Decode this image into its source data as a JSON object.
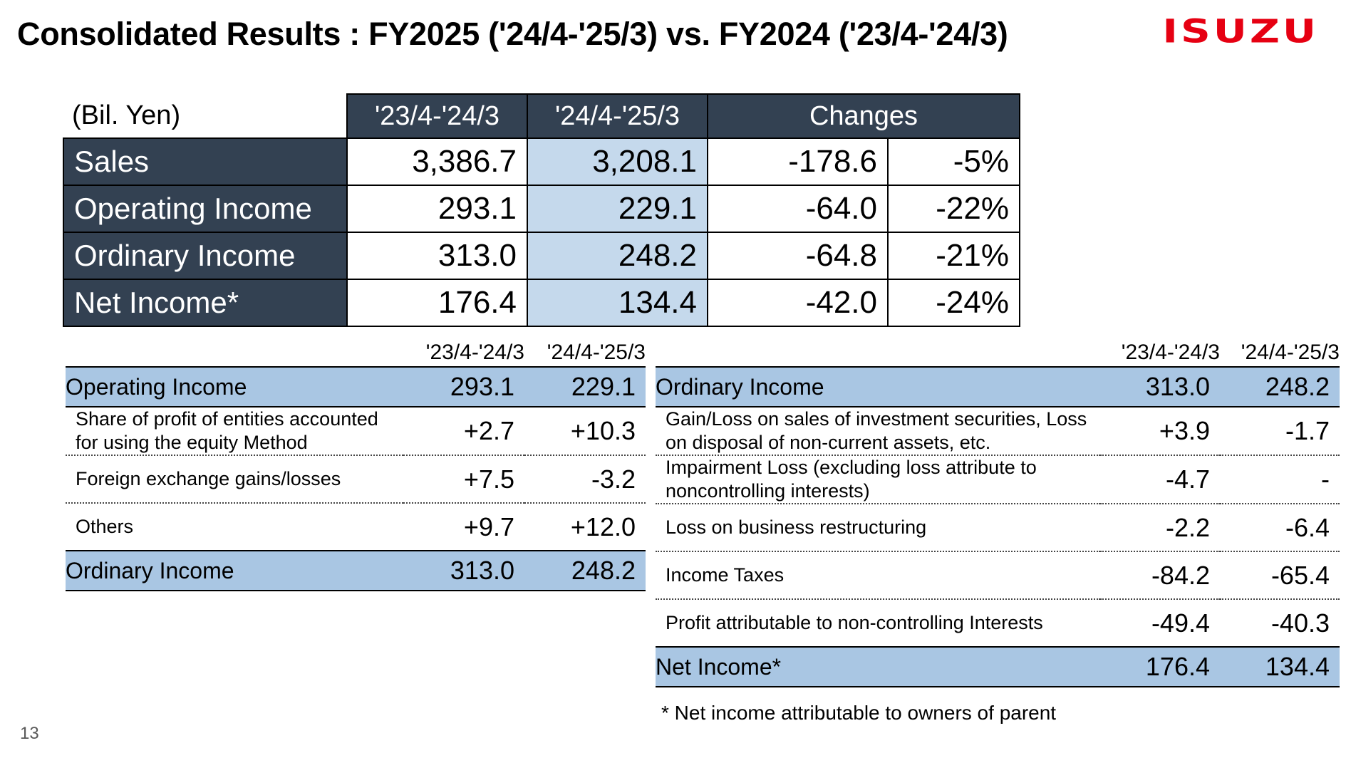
{
  "title": "Consolidated Results : FY2025 ('24/4-'25/3) vs. FY2024 ('23/4-'24/3)",
  "logo_text": "ISUZU",
  "colors": {
    "navy": "#334152",
    "light_blue": "#c5d9ec",
    "mid_blue": "#a9c6e3",
    "logo_red": "#e60012"
  },
  "main_table": {
    "unit": "(Bil. Yen)",
    "headers": [
      "'23/4-'24/3",
      "'24/4-'25/3",
      "Changes"
    ],
    "rows": [
      {
        "label": "Sales",
        "prev": "3,386.7",
        "cur": "3,208.1",
        "change": "-178.6",
        "pct": "-5%"
      },
      {
        "label": "Operating Income",
        "prev": "293.1",
        "cur": "229.1",
        "change": "-64.0",
        "pct": "-22%"
      },
      {
        "label": "Ordinary Income",
        "prev": "313.0",
        "cur": "248.2",
        "change": "-64.8",
        "pct": "-21%"
      },
      {
        "label": "Net Income*",
        "prev": "176.4",
        "cur": "134.4",
        "change": "-42.0",
        "pct": "-24%"
      }
    ]
  },
  "left_table": {
    "headers": [
      "'23/4-'24/3",
      "'24/4-'25/3"
    ],
    "top": {
      "label": "Operating Income",
      "prev": "293.1",
      "cur": "229.1"
    },
    "items": [
      {
        "label": "Share of profit of entities accounted for using the equity Method",
        "prev": "+2.7",
        "cur": "+10.3"
      },
      {
        "label": "Foreign exchange gains/losses",
        "prev": "+7.5",
        "cur": "-3.2"
      },
      {
        "label": "Others",
        "prev": "+9.7",
        "cur": "+12.0"
      }
    ],
    "bottom": {
      "label": "Ordinary Income",
      "prev": "313.0",
      "cur": "248.2"
    }
  },
  "right_table": {
    "headers": [
      "'23/4-'24/3",
      "'24/4-'25/3"
    ],
    "top": {
      "label": "Ordinary Income",
      "prev": "313.0",
      "cur": "248.2"
    },
    "items": [
      {
        "label": "Gain/Loss on sales of investment securities, Loss on disposal of non-current assets, etc.",
        "prev": "+3.9",
        "cur": "-1.7"
      },
      {
        "label": "Impairment Loss (excluding loss attribute to noncontrolling interests)",
        "prev": "-4.7",
        "cur": "-"
      },
      {
        "label": "Loss on business restructuring",
        "prev": "-2.2",
        "cur": "-6.4"
      },
      {
        "label": "Income Taxes",
        "prev": "-84.2",
        "cur": "-65.4"
      },
      {
        "label": "Profit attributable to non-controlling Interests",
        "prev": "-49.4",
        "cur": "-40.3"
      }
    ],
    "bottom": {
      "label": "Net Income*",
      "prev": "176.4",
      "cur": "134.4"
    }
  },
  "footnote": "* Net income attributable to owners of parent",
  "page_number": "13"
}
